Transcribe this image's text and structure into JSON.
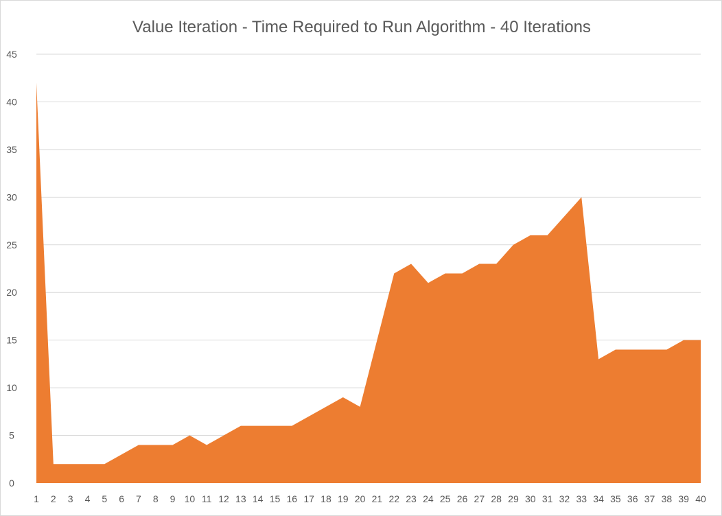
{
  "chart_data": {
    "type": "area",
    "title": "Value Iteration - Time Required to Run Algorithm - 40 Iterations",
    "xlabel": "",
    "ylabel": "",
    "x": [
      "1",
      "2",
      "3",
      "4",
      "5",
      "6",
      "7",
      "8",
      "9",
      "10",
      "11",
      "12",
      "13",
      "14",
      "15",
      "16",
      "17",
      "18",
      "19",
      "20",
      "21",
      "22",
      "23",
      "24",
      "25",
      "26",
      "27",
      "28",
      "29",
      "30",
      "31",
      "32",
      "33",
      "34",
      "35",
      "36",
      "37",
      "38",
      "39",
      "40"
    ],
    "values": [
      42,
      2,
      2,
      2,
      2,
      3,
      4,
      4,
      4,
      5,
      4,
      5,
      6,
      6,
      6,
      6,
      7,
      8,
      9,
      8,
      15,
      22,
      23,
      21,
      22,
      22,
      23,
      23,
      25,
      26,
      26,
      28,
      30,
      13,
      14,
      14,
      14,
      14,
      15,
      15
    ],
    "ylim": [
      0,
      45
    ],
    "yticks": [
      "0",
      "5",
      "10",
      "15",
      "20",
      "25",
      "30",
      "35",
      "40",
      "45"
    ],
    "grid": true,
    "legend": "none",
    "color": "#ED7D31"
  }
}
